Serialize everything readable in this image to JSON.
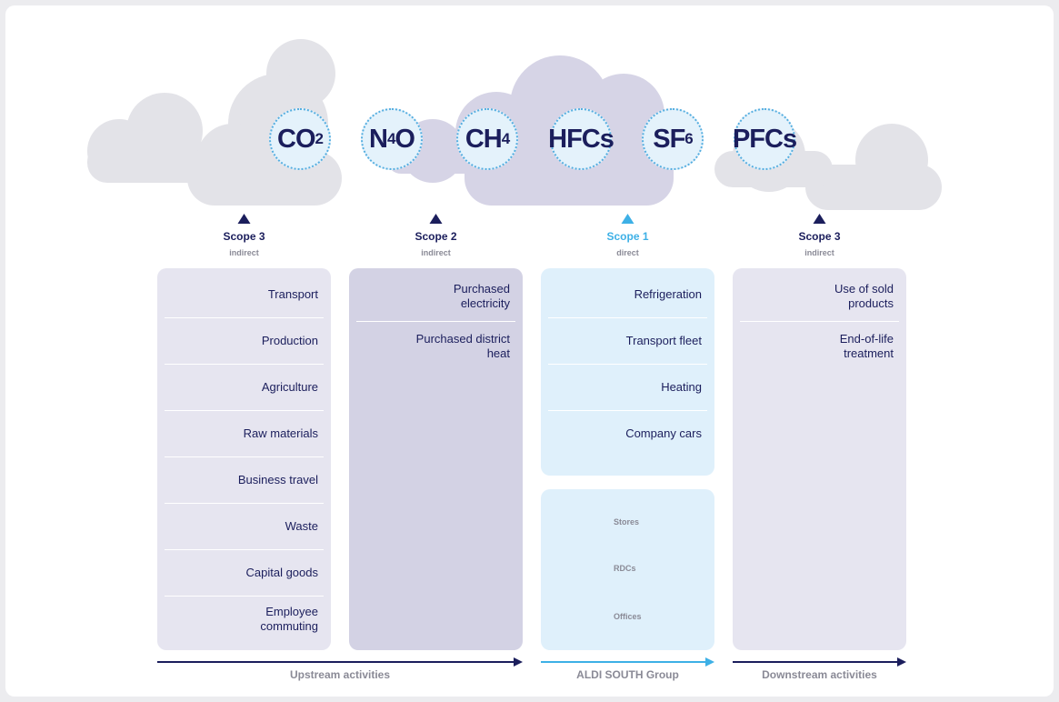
{
  "gases": [
    {
      "label": "CO",
      "sub": "2"
    },
    {
      "label": "N",
      "sub": "4",
      "suffix": "O"
    },
    {
      "label": "CH",
      "sub": "4"
    },
    {
      "label": "HFCs"
    },
    {
      "label": "SF",
      "sub": "6"
    },
    {
      "label": "PFCs"
    }
  ],
  "columns": [
    {
      "scope": "Scope 3",
      "type": "indirect",
      "items": [
        "Transport",
        "Production",
        "Agriculture",
        "Raw materials",
        "Business travel",
        "Waste",
        "Capital goods",
        "Employee commuting"
      ]
    },
    {
      "scope": "Scope 2",
      "type": "indirect",
      "items": [
        "Purchased electricity",
        "Purchased district heat"
      ]
    },
    {
      "scope": "Scope 1",
      "type": "direct",
      "items": [
        "Refrigeration",
        "Transport fleet",
        "Heating",
        "Company cars"
      ],
      "facilities": [
        "Stores",
        "RDCs",
        "Offices"
      ]
    },
    {
      "scope": "Scope 3",
      "type": "indirect",
      "items": [
        "Use of sold products",
        "End-of-life treatment"
      ]
    }
  ],
  "activities": [
    "Upstream activities",
    "ALDI SOUTH Group",
    "Downstream activities"
  ]
}
